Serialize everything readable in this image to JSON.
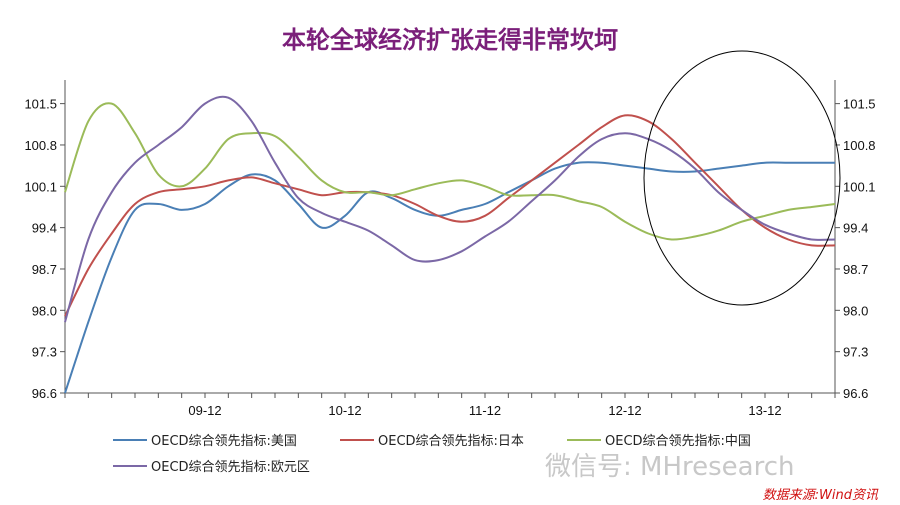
{
  "chart_data": {
    "type": "line",
    "title": "本轮全球经济扩张走得非常坎坷",
    "x_tick_labels": [
      "09-12",
      "10-12",
      "11-12",
      "12-12",
      "13-12"
    ],
    "x_tick_positions": [
      12,
      24,
      36,
      48,
      60
    ],
    "x_range": [
      0,
      66
    ],
    "ylim": [
      96.6,
      101.9
    ],
    "y_ticks": [
      "96.6",
      "97.3",
      "98.0",
      "98.7",
      "99.4",
      "100.1",
      "100.8",
      "101.5"
    ],
    "series": [
      {
        "name": "OECD综合领先指标:美国",
        "color": "#4a7fb5",
        "x": [
          0,
          2,
          4,
          6,
          8,
          10,
          12,
          14,
          16,
          18,
          20,
          22,
          24,
          26,
          28,
          30,
          32,
          34,
          36,
          38,
          40,
          42,
          44,
          46,
          48,
          50,
          52,
          54,
          56,
          58,
          60,
          62,
          64,
          66
        ],
        "y": [
          96.6,
          97.8,
          98.9,
          99.7,
          99.8,
          99.7,
          99.8,
          100.1,
          100.3,
          100.2,
          99.8,
          99.4,
          99.6,
          100.0,
          99.9,
          99.7,
          99.6,
          99.7,
          99.8,
          100.0,
          100.2,
          100.4,
          100.5,
          100.5,
          100.45,
          100.4,
          100.35,
          100.35,
          100.4,
          100.45,
          100.5,
          100.5,
          100.5,
          100.5
        ]
      },
      {
        "name": "OECD综合领先指标:日本",
        "color": "#c0504d",
        "x": [
          0,
          2,
          4,
          6,
          8,
          10,
          12,
          14,
          16,
          18,
          20,
          22,
          24,
          26,
          28,
          30,
          32,
          34,
          36,
          38,
          40,
          42,
          44,
          46,
          48,
          50,
          52,
          54,
          56,
          58,
          60,
          62,
          64,
          66
        ],
        "y": [
          97.9,
          98.7,
          99.3,
          99.8,
          100.0,
          100.05,
          100.1,
          100.2,
          100.25,
          100.15,
          100.05,
          99.95,
          100.0,
          100.0,
          99.95,
          99.8,
          99.6,
          99.5,
          99.6,
          99.9,
          100.2,
          100.5,
          100.8,
          101.1,
          101.3,
          101.2,
          100.9,
          100.5,
          100.1,
          99.7,
          99.4,
          99.2,
          99.1,
          99.1
        ]
      },
      {
        "name": "OECD综合领先指标:中国",
        "color": "#9bbb59",
        "x": [
          0,
          2,
          4,
          6,
          8,
          10,
          12,
          14,
          16,
          18,
          20,
          22,
          24,
          26,
          28,
          30,
          32,
          34,
          36,
          38,
          40,
          42,
          44,
          46,
          48,
          50,
          52,
          54,
          56,
          58,
          60,
          62,
          64,
          66
        ],
        "y": [
          100.0,
          101.2,
          101.5,
          101.0,
          100.3,
          100.1,
          100.4,
          100.9,
          101.0,
          100.95,
          100.6,
          100.2,
          100.0,
          100.0,
          99.95,
          100.05,
          100.15,
          100.2,
          100.1,
          99.95,
          99.95,
          99.95,
          99.85,
          99.75,
          99.5,
          99.3,
          99.2,
          99.25,
          99.35,
          99.5,
          99.6,
          99.7,
          99.75,
          99.8
        ]
      },
      {
        "name": "OECD综合领先指标:欧元区",
        "color": "#7b68a6",
        "x": [
          0,
          2,
          4,
          6,
          8,
          10,
          12,
          14,
          16,
          18,
          20,
          22,
          24,
          26,
          28,
          30,
          32,
          34,
          36,
          38,
          40,
          42,
          44,
          46,
          48,
          50,
          52,
          54,
          56,
          58,
          60,
          62,
          64,
          66
        ],
        "y": [
          97.8,
          99.2,
          100.0,
          100.5,
          100.8,
          101.1,
          101.5,
          101.6,
          101.2,
          100.5,
          99.9,
          99.65,
          99.5,
          99.35,
          99.1,
          98.85,
          98.85,
          99.0,
          99.25,
          99.5,
          99.85,
          100.2,
          100.6,
          100.9,
          101.0,
          100.9,
          100.7,
          100.4,
          100.0,
          99.7,
          99.45,
          99.3,
          99.2,
          99.2
        ]
      }
    ]
  },
  "legend": [
    {
      "label": "OECD综合领先指标:美国",
      "color": "#4a7fb5"
    },
    {
      "label": "OECD综合领先指标:日本",
      "color": "#c0504d"
    },
    {
      "label": "OECD综合领先指标:中国",
      "color": "#9bbb59"
    },
    {
      "label": "OECD综合领先指标:欧元区",
      "color": "#7b68a6"
    }
  ],
  "watermark": "微信号: MHresearch",
  "source": "数据来源:Wind资讯"
}
